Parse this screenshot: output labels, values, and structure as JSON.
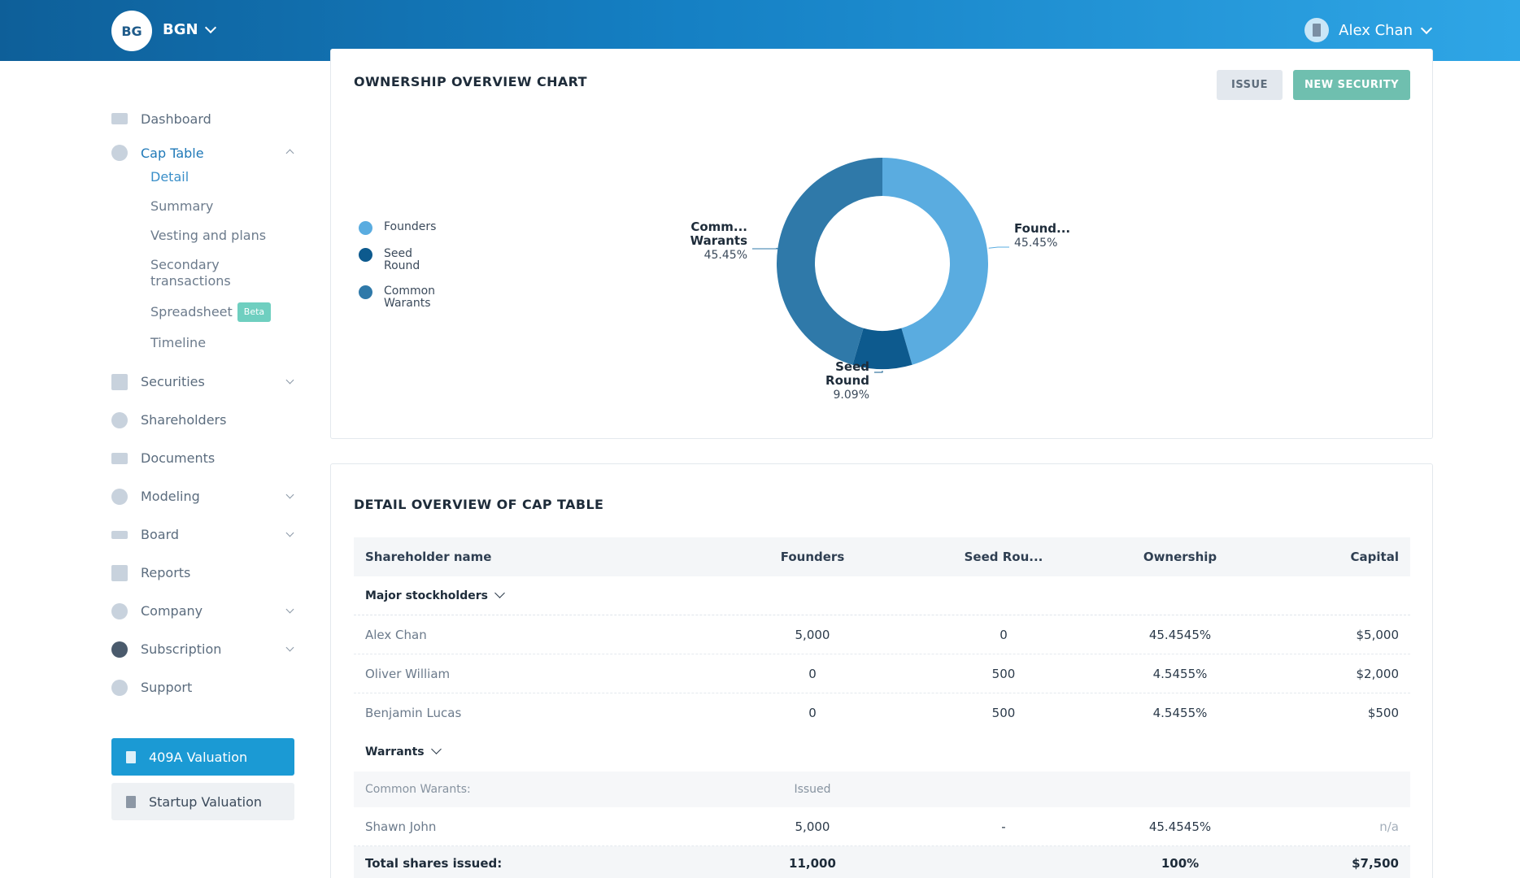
{
  "header": {
    "brand_initials": "BG",
    "brand_name": "BGN",
    "user_name": "Alex Chan"
  },
  "sidebar": {
    "items": [
      {
        "label": "Dashboard",
        "icon": "dashboard-icon"
      },
      {
        "label": "Cap Table",
        "icon": "pie-chart-icon",
        "active": true,
        "expanded": true
      },
      {
        "label": "Securities",
        "icon": "clipboard-icon"
      },
      {
        "label": "Shareholders",
        "icon": "person-icon"
      },
      {
        "label": "Documents",
        "icon": "folder-icon"
      },
      {
        "label": "Modeling",
        "icon": "lightbulb-icon"
      },
      {
        "label": "Board",
        "icon": "board-icon"
      },
      {
        "label": "Reports",
        "icon": "report-icon"
      },
      {
        "label": "Company",
        "icon": "gear-icon"
      },
      {
        "label": "Subscription",
        "icon": "dollar-icon"
      },
      {
        "label": "Support",
        "icon": "support-icon"
      }
    ],
    "cap_table_sub": [
      "Detail",
      "Summary",
      "Vesting and plans",
      "Secondary transactions",
      "Spreadsheet",
      "Timeline"
    ],
    "beta_badge": "Beta",
    "valuation_button": "409A Valuation",
    "startup_button": "Startup Valuation"
  },
  "ownership_card": {
    "title": "OWNERSHIP OVERVIEW CHART",
    "issue_button": "ISSUE",
    "new_security_button": "NEW SECURITY"
  },
  "chart_data": {
    "type": "pie",
    "donut": true,
    "slices": [
      {
        "label": "Founders",
        "callout": "Found...",
        "value": 45.45,
        "pct_text": "45.45%",
        "color": "#5aace0"
      },
      {
        "label": "Seed Round",
        "callout": "Seed Round",
        "value": 9.09,
        "pct_text": "9.09%",
        "color": "#0d5a8e"
      },
      {
        "label": "Common Warants",
        "callout": "Comm... Warants",
        "value": 45.45,
        "pct_text": "45.45%",
        "color": "#2f79a9"
      }
    ],
    "legend": [
      {
        "label": "Founders",
        "color": "#5aace0"
      },
      {
        "label": "Seed Round",
        "color": "#0d5a8e"
      },
      {
        "label": "Common Warants",
        "color": "#2f79a9"
      }
    ],
    "legend_position": "left"
  },
  "detail_card": {
    "title": "DETAIL OVERVIEW OF CAP TABLE",
    "columns": [
      "Shareholder name",
      "Founders",
      "Seed Rou...",
      "Ownership",
      "Capital"
    ],
    "groups": [
      {
        "name": "Major stockholders",
        "rows": [
          [
            "Alex Chan",
            "5,000",
            "0",
            "45.4545%",
            "$5,000"
          ],
          [
            "Oliver William",
            "0",
            "500",
            "4.5455%",
            "$2,000"
          ],
          [
            "Benjamin Lucas",
            "0",
            "500",
            "4.5455%",
            "$500"
          ]
        ]
      },
      {
        "name": "Warrants",
        "subheader": [
          "Common Warants:",
          "Issued"
        ],
        "rows": [
          [
            "Shawn John",
            "5,000",
            "-",
            "45.4545%",
            "n/a"
          ]
        ]
      }
    ],
    "total": [
      "Total shares issued:",
      "11,000",
      "",
      "100%",
      "$7,500"
    ]
  }
}
